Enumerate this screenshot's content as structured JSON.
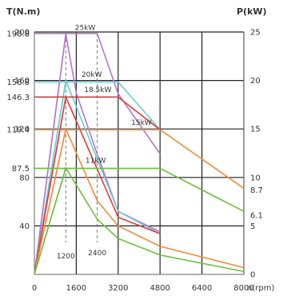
{
  "chart_data": {
    "type": "line",
    "left_axis_title": "T(N.m)",
    "right_axis_title": "P(kW)",
    "x_unit_label": "n(rpm)",
    "x_ticks": [
      "0",
      "1600",
      "3200",
      "4800",
      "6400",
      "8000"
    ],
    "left_ticks": [
      "200",
      "198.8",
      "160",
      "158.8",
      "146.3",
      "120",
      "119.4",
      "87.5",
      "80",
      "40"
    ],
    "right_ticks": [
      "25",
      "20",
      "15",
      "10",
      "8.7",
      "6.1",
      "5",
      "0"
    ],
    "xlim": [
      0,
      8000
    ],
    "ylim_torque": [
      0,
      200
    ],
    "ylim_power": [
      0,
      25
    ],
    "grid": true,
    "annotations": [
      "1200",
      "2400"
    ],
    "colors": {
      "25kW": "#b574cf",
      "20kW": "#63d0d4",
      "18.5kW": "#e23a36",
      "15kW": "#f28b3c",
      "11kW": "#6cbf3f",
      "grid": "#222222",
      "axis": "#666666",
      "dash": "#777777"
    },
    "series": [
      {
        "name": "25kW",
        "torque": {
          "x": [
            0,
            1200,
            2400,
            3200,
            4800
          ],
          "y": [
            198.8,
            198.8,
            198.8,
            149,
            99.5
          ]
        },
        "power": {
          "x": [
            0,
            1200,
            1600,
            2400,
            3200,
            4800
          ],
          "y": [
            0,
            24.8,
            18.7,
            12.4,
            6.5,
            4.4
          ]
        }
      },
      {
        "name": "20kW",
        "torque": {
          "x": [
            0,
            1200,
            3200,
            4800
          ],
          "y": [
            158.8,
            158.8,
            158.8,
            119.4
          ]
        },
        "power": {
          "x": [
            0,
            1200,
            3200,
            4800
          ],
          "y": [
            0,
            20,
            6.5,
            4.2
          ]
        }
      },
      {
        "name": "18.5kW",
        "torque": {
          "x": [
            0,
            1200,
            3200,
            4800
          ],
          "y": [
            146.3,
            146.3,
            146.3,
            119.4
          ]
        },
        "power": {
          "x": [
            0,
            1200,
            3200,
            4800
          ],
          "y": [
            0,
            18.3,
            5.9,
            4.2
          ]
        }
      },
      {
        "name": "15kW",
        "torque": {
          "x": [
            0,
            1200,
            4800,
            8000
          ],
          "y": [
            119.4,
            119.4,
            119.4,
            71
          ]
        },
        "power": {
          "x": [
            0,
            1200,
            2400,
            3200,
            4800,
            8000
          ],
          "y": [
            0,
            15,
            7.6,
            5.0,
            2.9,
            0.7
          ]
        }
      },
      {
        "name": "11kW",
        "torque": {
          "x": [
            0,
            1200,
            4800,
            8000
          ],
          "y": [
            87.5,
            87.5,
            87.5,
            52
          ]
        },
        "power": {
          "x": [
            0,
            1200,
            2400,
            3200,
            4800,
            8000
          ],
          "y": [
            0,
            11,
            5.7,
            3.7,
            2.0,
            0.3
          ]
        }
      }
    ]
  }
}
